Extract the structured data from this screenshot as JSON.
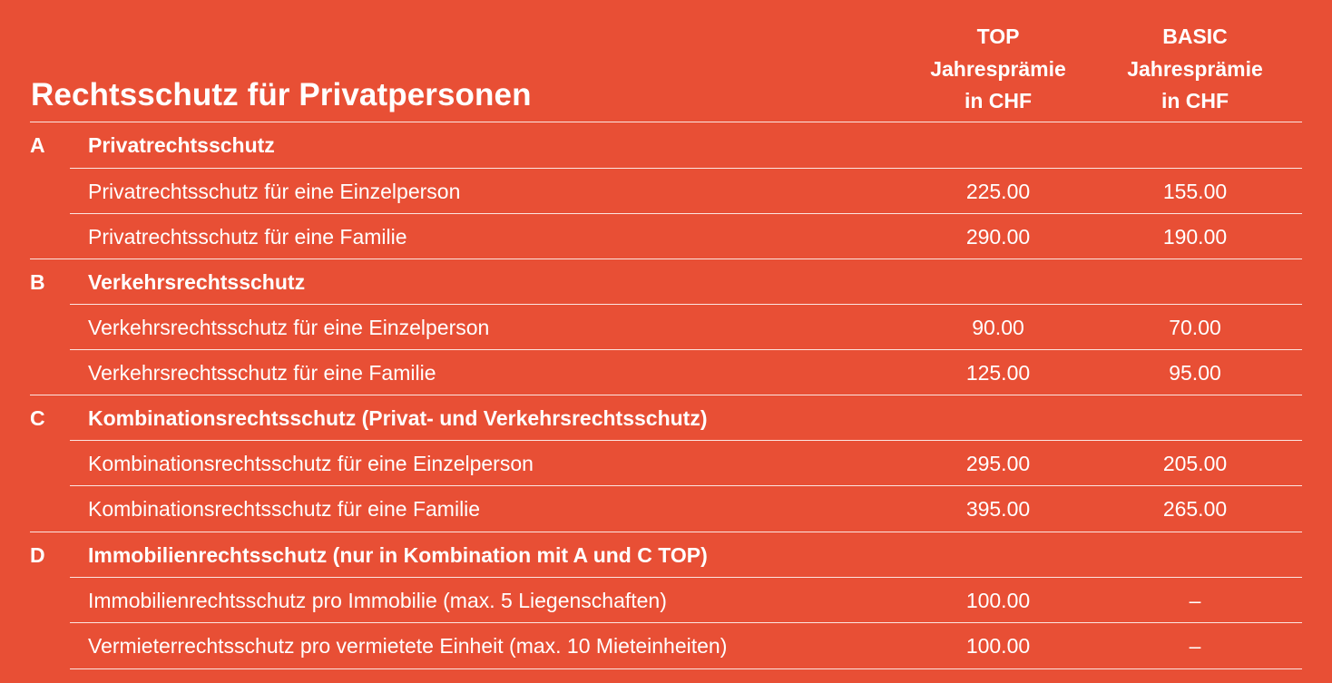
{
  "header": {
    "title": "Rechtsschutz für Privatpersonen",
    "col_top": [
      "TOP",
      "Jahresprämie",
      "in CHF"
    ],
    "col_basic": [
      "BASIC",
      "Jahresprämie",
      "in CHF"
    ]
  },
  "sections": [
    {
      "letter": "A",
      "title": "Privatrechtsschutz",
      "rows": [
        {
          "label": "Privatrechtsschutz für eine Einzelperson",
          "top": "225.00",
          "basic": "155.00"
        },
        {
          "label": "Privatrechtsschutz für eine Familie",
          "top": "290.00",
          "basic": "190.00"
        }
      ]
    },
    {
      "letter": "B",
      "title": "Verkehrsrechtsschutz",
      "rows": [
        {
          "label": "Verkehrsrechtsschutz für eine Einzelperson",
          "top": "90.00",
          "basic": "70.00"
        },
        {
          "label": "Verkehrsrechtsschutz für eine Familie",
          "top": "125.00",
          "basic": "95.00"
        }
      ]
    },
    {
      "letter": "C",
      "title": "Kombinationsrechtsschutz (Privat- und Verkehrsrechtsschutz)",
      "rows": [
        {
          "label": "Kombinationsrechtsschutz für eine Einzelperson",
          "top": "295.00",
          "basic": "205.00"
        },
        {
          "label": "Kombinationsrechtsschutz für eine Familie",
          "top": "395.00",
          "basic": "265.00"
        }
      ]
    },
    {
      "letter": "D",
      "title": "Immobilienrechtsschutz (nur in Kombination mit A und C TOP)",
      "rows": [
        {
          "label": "Immobilienrechtsschutz pro Immobilie (max. 5 Liegenschaften)",
          "top": "100.00",
          "basic": "–"
        },
        {
          "label": "Vermieterrechtsschutz pro vermietete Einheit (max. 10 Mieteinheiten)",
          "top": "100.00",
          "basic": "–"
        }
      ]
    }
  ]
}
